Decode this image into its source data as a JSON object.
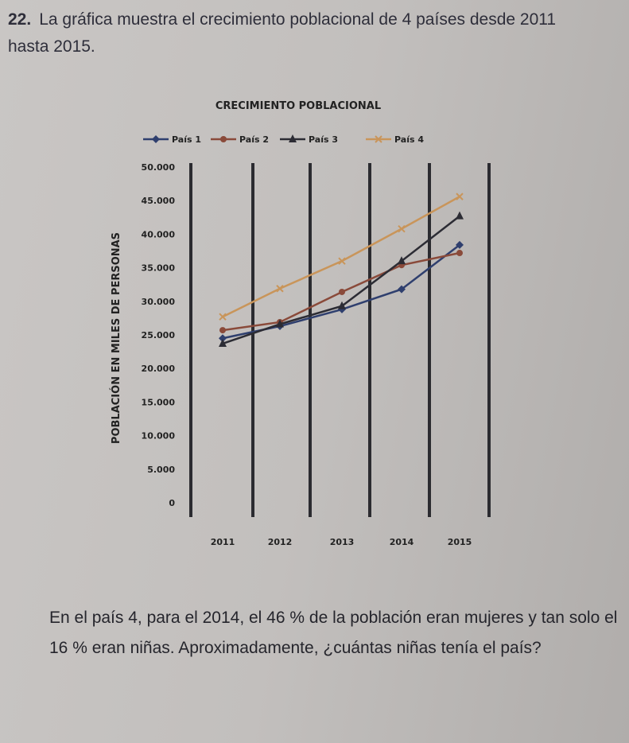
{
  "question": {
    "number": "22.",
    "intro": "La gráfica muestra el crecimiento poblacional de 4 países desde 2011 hasta 2015.",
    "prompt": "En el país 4, para el 2014, el 46 % de la población eran mujeres y tan solo el 16 % eran niñas. Aproximadamente, ¿cuántas niñas tenía el país?"
  },
  "chart_data": {
    "type": "line",
    "title": "CRECIMIENTO POBLACIONAL",
    "ylabel": "POBLACIÓN EN MILES DE PERSONAS",
    "xlabel": "",
    "categories": [
      "2011",
      "2012",
      "2013",
      "2014",
      "2015"
    ],
    "yticks": [
      "0",
      "5.000",
      "10.000",
      "15.000",
      "20.000",
      "25.000",
      "30.000",
      "35.000",
      "40.000",
      "45.000",
      "50.000"
    ],
    "ylim": [
      0,
      50000
    ],
    "legend_position": "top",
    "series": [
      {
        "name": "País 1",
        "marker": "diamond",
        "color": "#2f3f6e",
        "values": [
          24500,
          26300,
          28800,
          31800,
          38400
        ]
      },
      {
        "name": "País 2",
        "marker": "circle",
        "color": "#8a4a3a",
        "values": [
          25700,
          26900,
          31400,
          35400,
          37200
        ]
      },
      {
        "name": "País 3",
        "marker": "triangle",
        "color": "#2c2c34",
        "values": [
          23700,
          26600,
          29300,
          36000,
          42700
        ]
      },
      {
        "name": "País 4",
        "marker": "x",
        "color": "#c9955a",
        "values": [
          27700,
          31900,
          36000,
          40800,
          45600
        ]
      }
    ]
  }
}
